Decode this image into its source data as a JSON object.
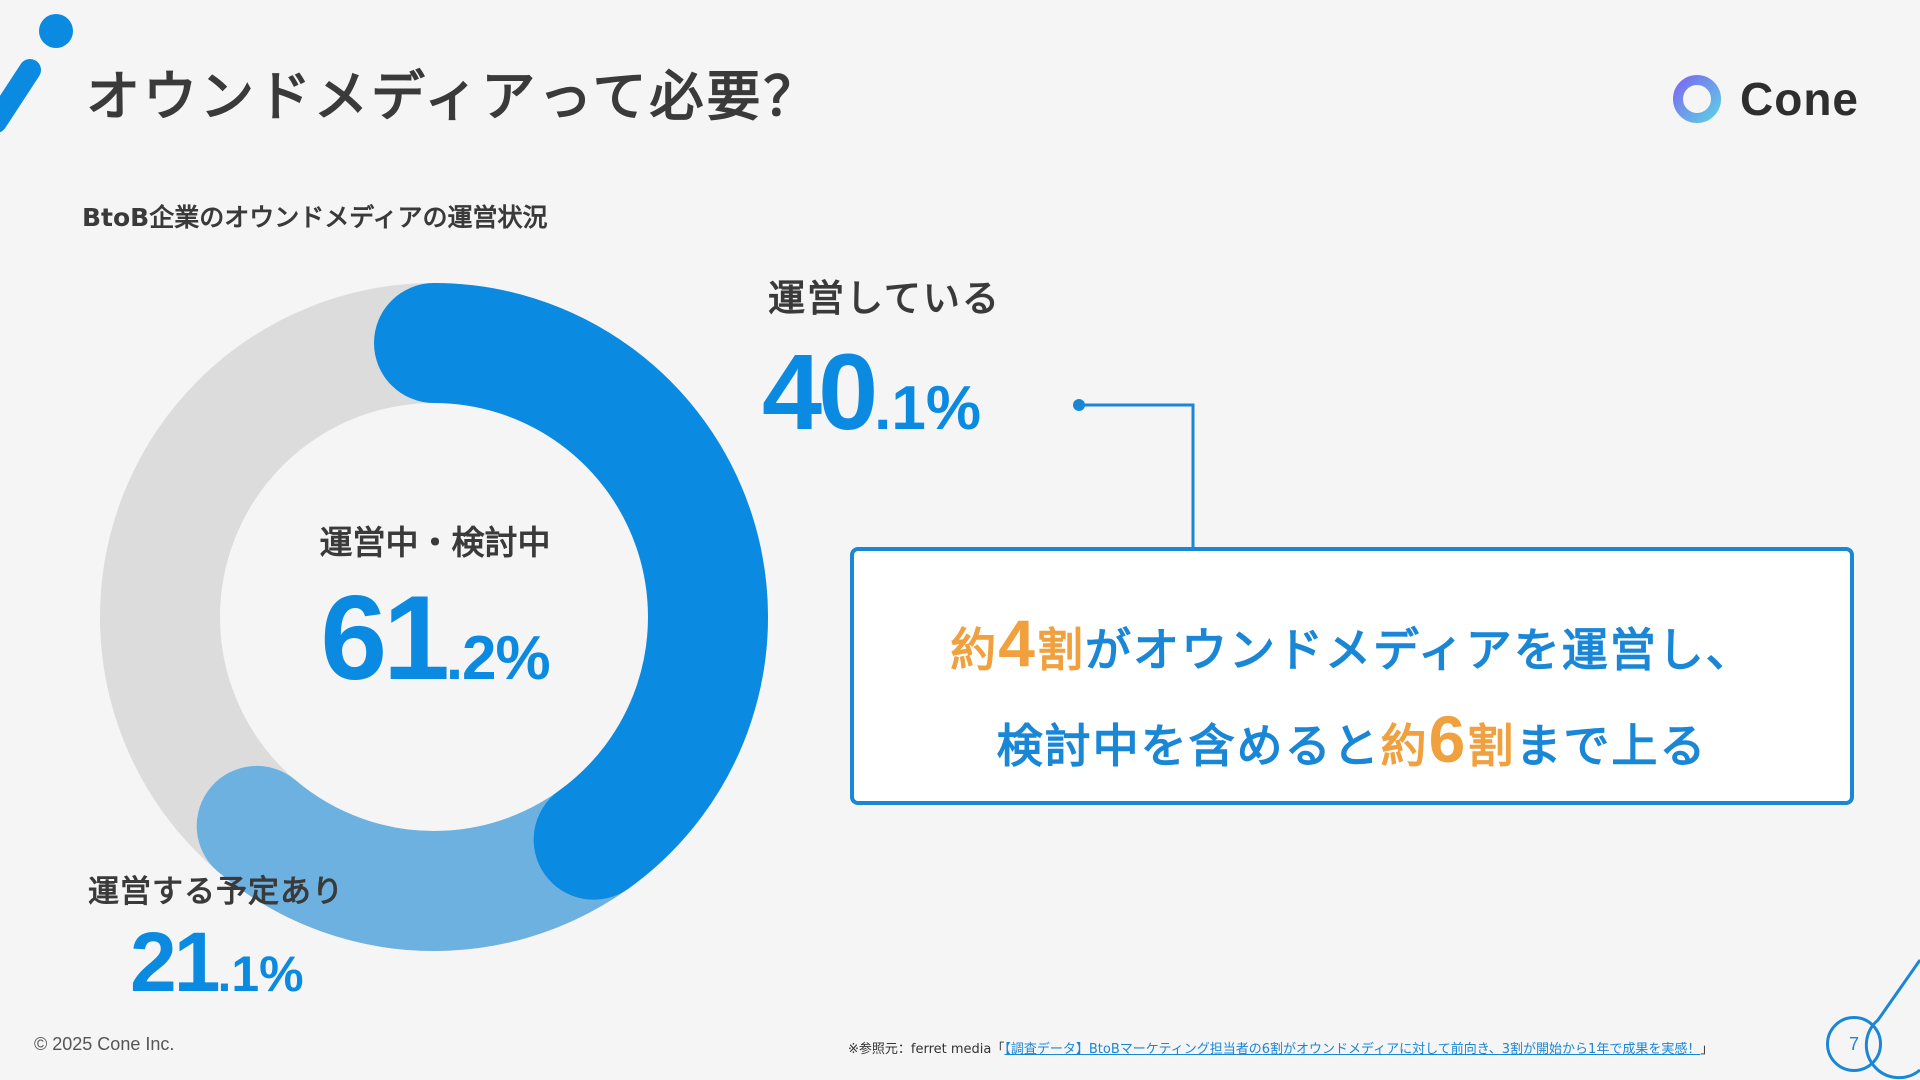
{
  "header": {
    "title": "オウンドメディアって必要？",
    "logo_text": "Cone"
  },
  "chart_data": {
    "type": "pie",
    "title": "BtoB企業のオウンドメディアの運営状況",
    "center_label": "運営中・検討中",
    "center_value_int": "61",
    "center_value_dec": ".2%",
    "segments": [
      {
        "name": "運営している",
        "value": 40.1,
        "value_int": "40",
        "value_dec": ".1%",
        "color": "#0a8ae0"
      },
      {
        "name": "運営する予定あり",
        "value": 21.1,
        "value_int": "21",
        "value_dec": ".1%",
        "color": "#6cb1df"
      },
      {
        "name": "",
        "value": 38.8,
        "color": "#dcdcdc"
      }
    ]
  },
  "callout": {
    "l1_a": "約",
    "l1_b": "4",
    "l1_c": "割",
    "l1_d": "がオウンドメディアを運営し、",
    "l2_a": "検討中を含めると",
    "l2_b": "約",
    "l2_c": "6",
    "l2_d": "割",
    "l2_e": "まで上る"
  },
  "footer": {
    "copyright": "© 2025 Cone Inc.",
    "source_prefix": "※参照元：ferret media「",
    "source_link": "【調査データ】BtoBマーケティング担当者の6割がオウンドメディアに対して前向き、3割が開始から1年で成果を実感！",
    "source_suffix": "」",
    "page_number": "7"
  },
  "colors": {
    "accent": "#0a8ae0",
    "light_accent": "#6cb1df",
    "track": "#dcdcdc",
    "highlight": "#f0a03c",
    "border": "#1987d6"
  }
}
